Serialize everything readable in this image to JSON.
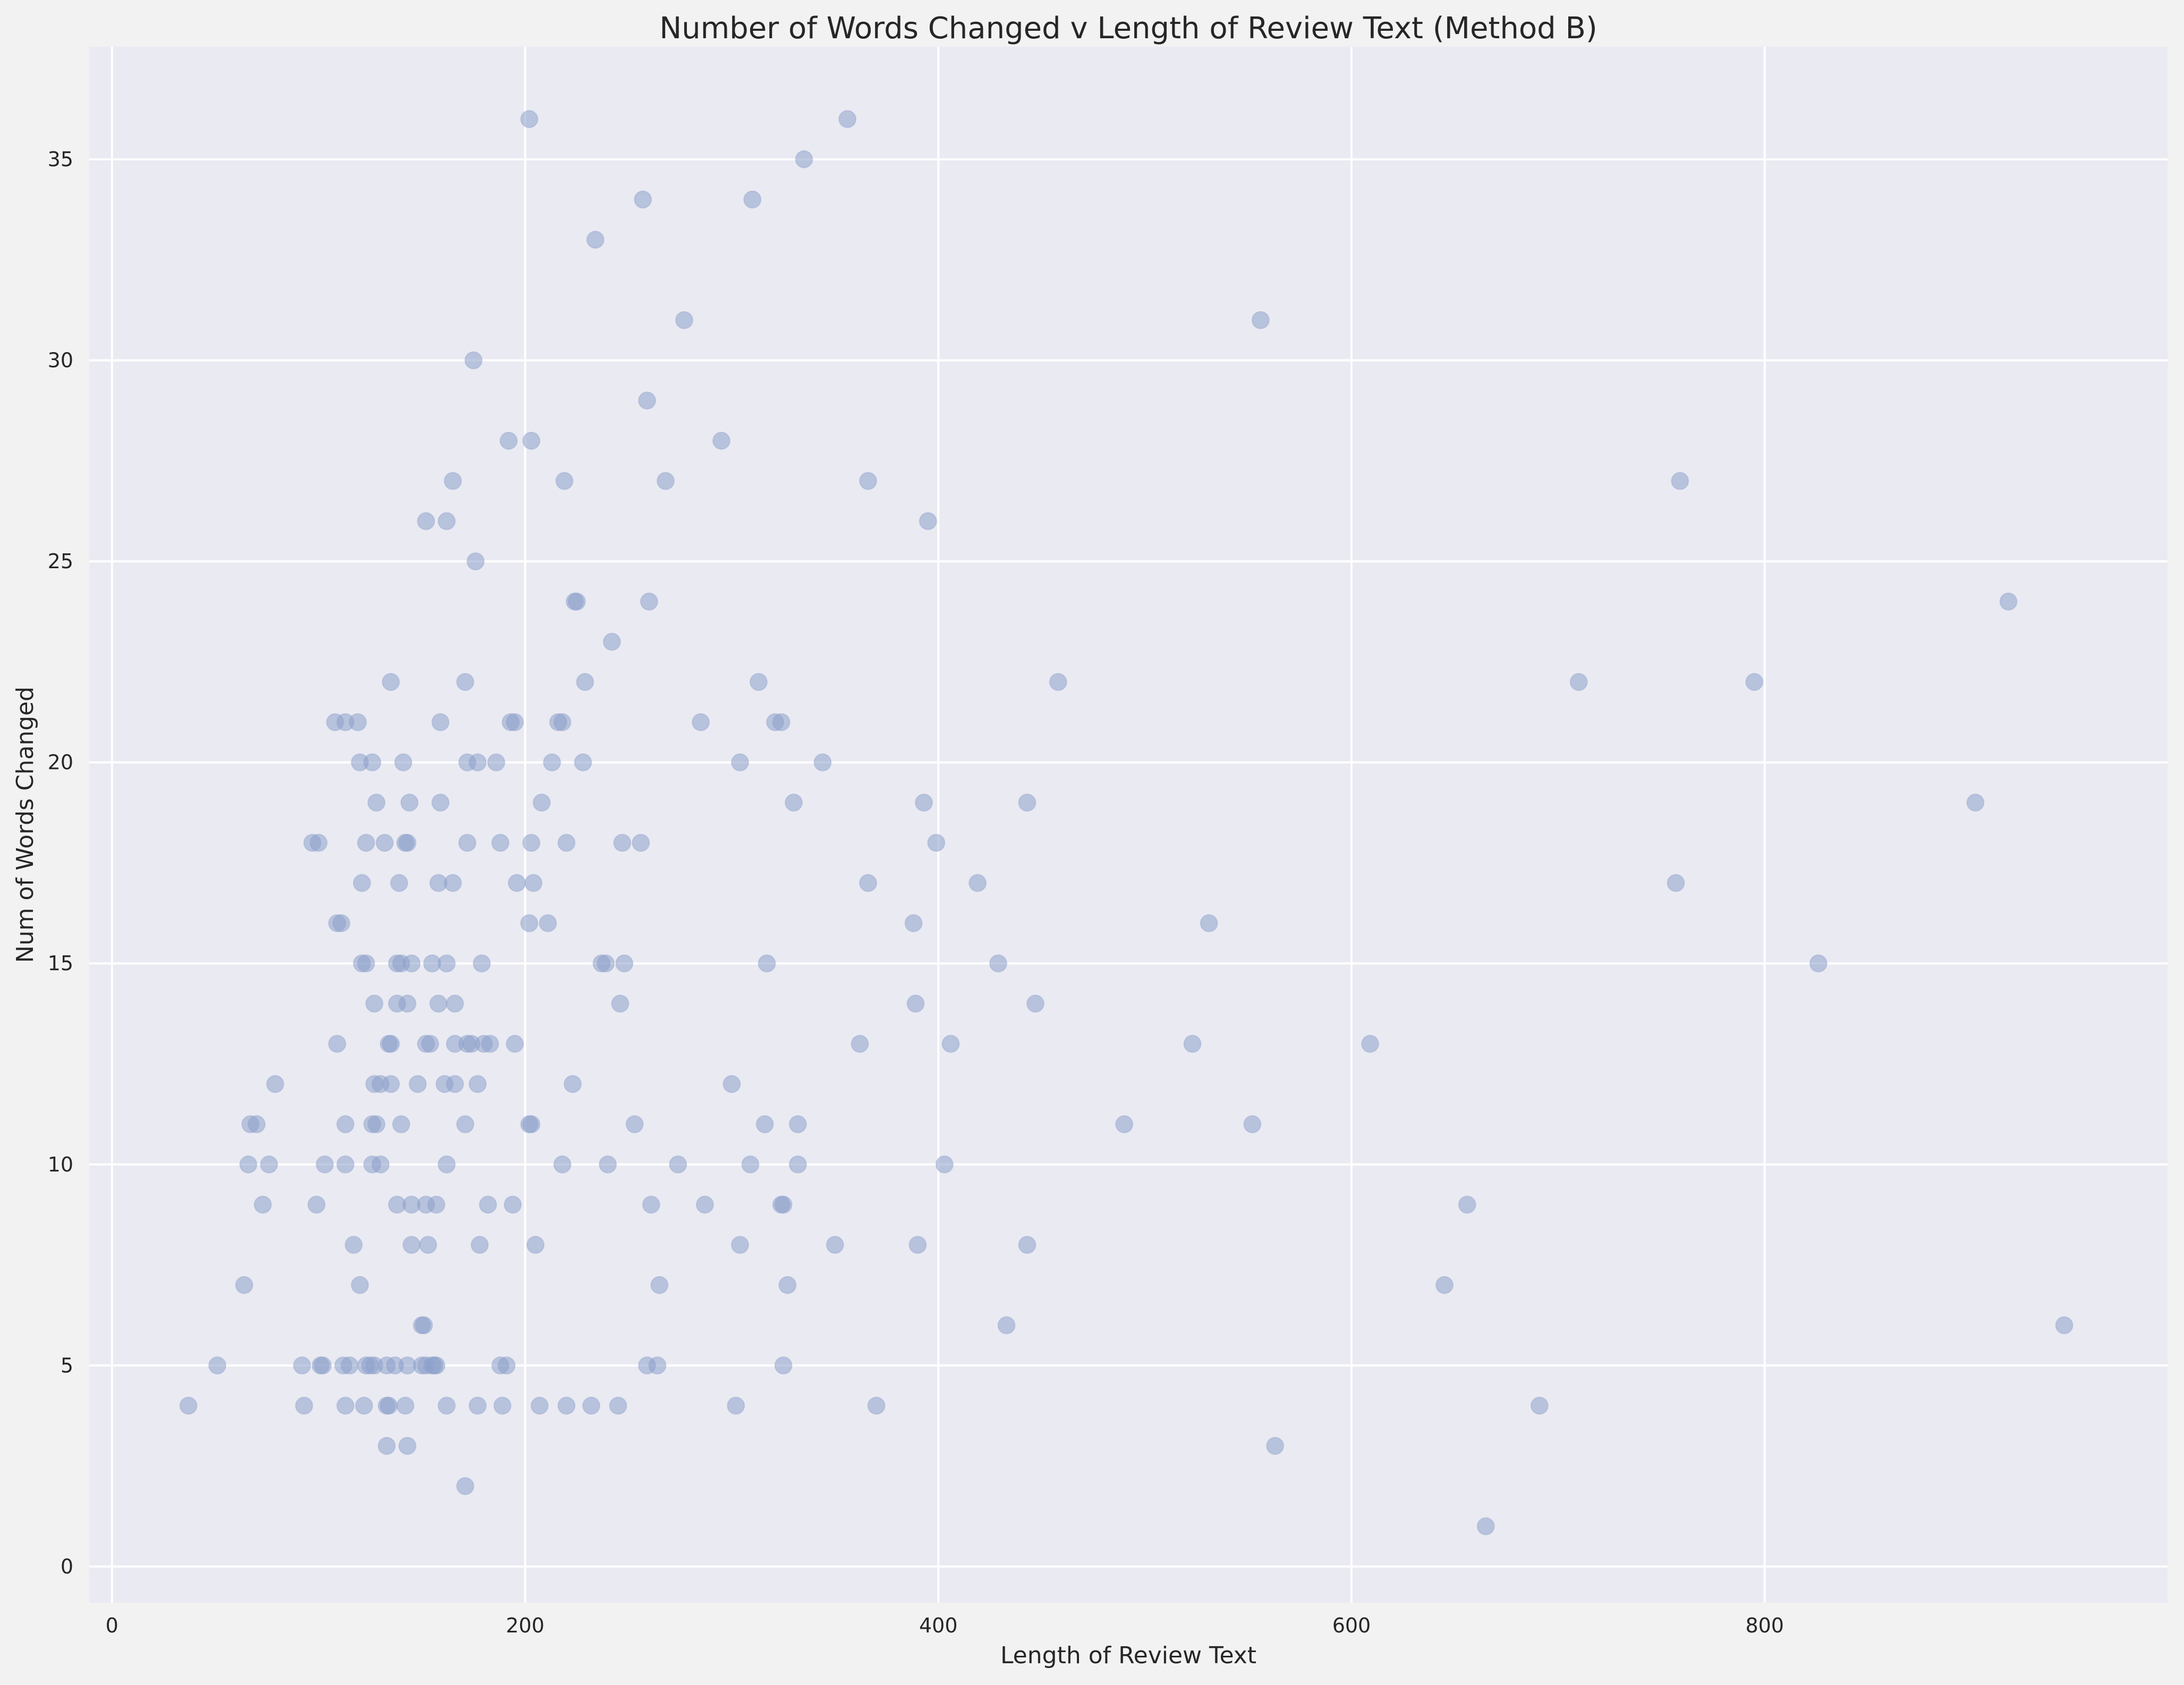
{
  "chart_data": {
    "type": "scatter",
    "title": "Number of Words Changed v Length of Review Text (Method B)",
    "xlabel": "Length of Review Text",
    "ylabel": "Num of Words Changed",
    "xlim": [
      -11,
      995
    ],
    "ylim": [
      -0.9,
      37.8
    ],
    "xticks": [
      0,
      200,
      400,
      600,
      800
    ],
    "yticks": [
      0,
      5,
      10,
      15,
      20,
      25,
      30,
      35
    ],
    "grid": true,
    "background_color": "#eaeaf2",
    "point_color": "#8da0cb",
    "points": [
      [
        202,
        36
      ],
      [
        356,
        36
      ],
      [
        335,
        35
      ],
      [
        257,
        34
      ],
      [
        310,
        34
      ],
      [
        234,
        33
      ],
      [
        277,
        31
      ],
      [
        556,
        31
      ],
      [
        175,
        30
      ],
      [
        259,
        29
      ],
      [
        192,
        28
      ],
      [
        203,
        28
      ],
      [
        295,
        28
      ],
      [
        165,
        27
      ],
      [
        219,
        27
      ],
      [
        268,
        27
      ],
      [
        366,
        27
      ],
      [
        759,
        27
      ],
      [
        152,
        26
      ],
      [
        162,
        26
      ],
      [
        395,
        26
      ],
      [
        176,
        25
      ],
      [
        224,
        24
      ],
      [
        225,
        24
      ],
      [
        260,
        24
      ],
      [
        918,
        24
      ],
      [
        242,
        23
      ],
      [
        135,
        22
      ],
      [
        171,
        22
      ],
      [
        229,
        22
      ],
      [
        313,
        22
      ],
      [
        458,
        22
      ],
      [
        710,
        22
      ],
      [
        795,
        22
      ],
      [
        108,
        21
      ],
      [
        113,
        21
      ],
      [
        119,
        21
      ],
      [
        159,
        21
      ],
      [
        193,
        21
      ],
      [
        195,
        21
      ],
      [
        216,
        21
      ],
      [
        218,
        21
      ],
      [
        285,
        21
      ],
      [
        321,
        21
      ],
      [
        324,
        21
      ],
      [
        120,
        20
      ],
      [
        126,
        20
      ],
      [
        141,
        20
      ],
      [
        172,
        20
      ],
      [
        177,
        20
      ],
      [
        186,
        20
      ],
      [
        213,
        20
      ],
      [
        228,
        20
      ],
      [
        304,
        20
      ],
      [
        344,
        20
      ],
      [
        128,
        19
      ],
      [
        144,
        19
      ],
      [
        159,
        19
      ],
      [
        208,
        19
      ],
      [
        330,
        19
      ],
      [
        393,
        19
      ],
      [
        443,
        19
      ],
      [
        902,
        19
      ],
      [
        97,
        18
      ],
      [
        100,
        18
      ],
      [
        123,
        18
      ],
      [
        132,
        18
      ],
      [
        142,
        18
      ],
      [
        143,
        18
      ],
      [
        172,
        18
      ],
      [
        188,
        18
      ],
      [
        203,
        18
      ],
      [
        220,
        18
      ],
      [
        247,
        18
      ],
      [
        256,
        18
      ],
      [
        399,
        18
      ],
      [
        121,
        17
      ],
      [
        139,
        17
      ],
      [
        158,
        17
      ],
      [
        165,
        17
      ],
      [
        196,
        17
      ],
      [
        204,
        17
      ],
      [
        366,
        17
      ],
      [
        419,
        17
      ],
      [
        757,
        17
      ],
      [
        109,
        16
      ],
      [
        111,
        16
      ],
      [
        202,
        16
      ],
      [
        211,
        16
      ],
      [
        388,
        16
      ],
      [
        531,
        16
      ],
      [
        121,
        15
      ],
      [
        123,
        15
      ],
      [
        138,
        15
      ],
      [
        140,
        15
      ],
      [
        145,
        15
      ],
      [
        155,
        15
      ],
      [
        162,
        15
      ],
      [
        179,
        15
      ],
      [
        237,
        15
      ],
      [
        239,
        15
      ],
      [
        248,
        15
      ],
      [
        317,
        15
      ],
      [
        429,
        15
      ],
      [
        826,
        15
      ],
      [
        127,
        14
      ],
      [
        138,
        14
      ],
      [
        143,
        14
      ],
      [
        158,
        14
      ],
      [
        166,
        14
      ],
      [
        246,
        14
      ],
      [
        389,
        14
      ],
      [
        447,
        14
      ],
      [
        109,
        13
      ],
      [
        134,
        13
      ],
      [
        135,
        13
      ],
      [
        152,
        13
      ],
      [
        154,
        13
      ],
      [
        166,
        13
      ],
      [
        172,
        13
      ],
      [
        174,
        13
      ],
      [
        180,
        13
      ],
      [
        183,
        13
      ],
      [
        195,
        13
      ],
      [
        362,
        13
      ],
      [
        406,
        13
      ],
      [
        523,
        13
      ],
      [
        609,
        13
      ],
      [
        79,
        12
      ],
      [
        127,
        12
      ],
      [
        130,
        12
      ],
      [
        135,
        12
      ],
      [
        148,
        12
      ],
      [
        161,
        12
      ],
      [
        166,
        12
      ],
      [
        177,
        12
      ],
      [
        223,
        12
      ],
      [
        300,
        12
      ],
      [
        67,
        11
      ],
      [
        70,
        11
      ],
      [
        113,
        11
      ],
      [
        126,
        11
      ],
      [
        128,
        11
      ],
      [
        140,
        11
      ],
      [
        171,
        11
      ],
      [
        202,
        11
      ],
      [
        203,
        11
      ],
      [
        253,
        11
      ],
      [
        316,
        11
      ],
      [
        332,
        11
      ],
      [
        490,
        11
      ],
      [
        552,
        11
      ],
      [
        66,
        10
      ],
      [
        76,
        10
      ],
      [
        103,
        10
      ],
      [
        113,
        10
      ],
      [
        126,
        10
      ],
      [
        130,
        10
      ],
      [
        162,
        10
      ],
      [
        218,
        10
      ],
      [
        240,
        10
      ],
      [
        274,
        10
      ],
      [
        309,
        10
      ],
      [
        332,
        10
      ],
      [
        403,
        10
      ],
      [
        73,
        9
      ],
      [
        99,
        9
      ],
      [
        138,
        9
      ],
      [
        145,
        9
      ],
      [
        152,
        9
      ],
      [
        157,
        9
      ],
      [
        182,
        9
      ],
      [
        194,
        9
      ],
      [
        261,
        9
      ],
      [
        287,
        9
      ],
      [
        324,
        9
      ],
      [
        325,
        9
      ],
      [
        656,
        9
      ],
      [
        117,
        8
      ],
      [
        145,
        8
      ],
      [
        153,
        8
      ],
      [
        178,
        8
      ],
      [
        205,
        8
      ],
      [
        304,
        8
      ],
      [
        350,
        8
      ],
      [
        390,
        8
      ],
      [
        443,
        8
      ],
      [
        64,
        7
      ],
      [
        120,
        7
      ],
      [
        265,
        7
      ],
      [
        327,
        7
      ],
      [
        645,
        7
      ],
      [
        150,
        6
      ],
      [
        151,
        6
      ],
      [
        433,
        6
      ],
      [
        945,
        6
      ],
      [
        51,
        5
      ],
      [
        92,
        5
      ],
      [
        101,
        5
      ],
      [
        102,
        5
      ],
      [
        112,
        5
      ],
      [
        115,
        5
      ],
      [
        123,
        5
      ],
      [
        125,
        5
      ],
      [
        127,
        5
      ],
      [
        133,
        5
      ],
      [
        137,
        5
      ],
      [
        143,
        5
      ],
      [
        150,
        5
      ],
      [
        152,
        5
      ],
      [
        155,
        5
      ],
      [
        156,
        5
      ],
      [
        157,
        5
      ],
      [
        188,
        5
      ],
      [
        191,
        5
      ],
      [
        259,
        5
      ],
      [
        264,
        5
      ],
      [
        325,
        5
      ],
      [
        37,
        4
      ],
      [
        93,
        4
      ],
      [
        113,
        4
      ],
      [
        122,
        4
      ],
      [
        133,
        4
      ],
      [
        134,
        4
      ],
      [
        142,
        4
      ],
      [
        162,
        4
      ],
      [
        177,
        4
      ],
      [
        189,
        4
      ],
      [
        207,
        4
      ],
      [
        220,
        4
      ],
      [
        232,
        4
      ],
      [
        245,
        4
      ],
      [
        302,
        4
      ],
      [
        370,
        4
      ],
      [
        691,
        4
      ],
      [
        133,
        3
      ],
      [
        143,
        3
      ],
      [
        563,
        3
      ],
      [
        171,
        2
      ],
      [
        665,
        1
      ]
    ]
  }
}
